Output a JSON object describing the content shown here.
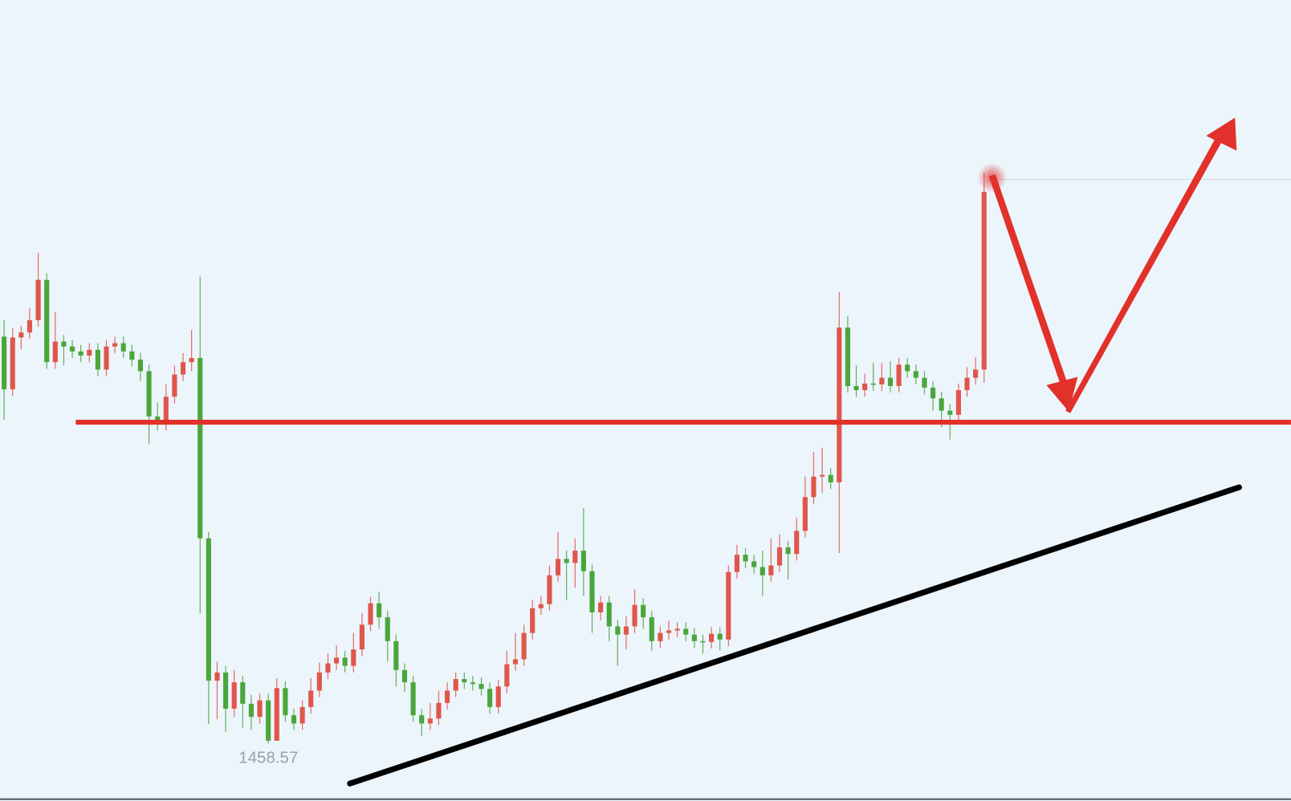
{
  "chart_data": {
    "type": "candlestick",
    "up_color": "#e0564c",
    "down_color": "#4aa63c",
    "ylim": [
      1450,
      1550
    ],
    "open": [
      1508.0,
      1501.6,
      1507.9,
      1508.5,
      1510.0,
      1514.9,
      1504.9,
      1507.4,
      1506.8,
      1506.2,
      1505.7,
      1506.4,
      1504.0,
      1506.8,
      1507.2,
      1506.2,
      1505.2,
      1503.8,
      1498.3,
      1497.4,
      1500.7,
      1503.4,
      1504.9,
      1505.4,
      1483.5,
      1466.2,
      1467.2,
      1462.8,
      1466.0,
      1463.4,
      1461.8,
      1463.8,
      1458.9,
      1465.3,
      1462.0,
      1461.0,
      1463.0,
      1465.0,
      1467.2,
      1468.3,
      1469.0,
      1468.0,
      1470.0,
      1473.0,
      1475.6,
      1473.9,
      1471.0,
      1467.5,
      1466.0,
      1462.0,
      1461.0,
      1461.6,
      1463.5,
      1465.0,
      1466.4,
      1466.0,
      1465.8,
      1465.2,
      1463.0,
      1465.5,
      1468.2,
      1468.8,
      1472.0,
      1475.0,
      1475.5,
      1479.0,
      1481.0,
      1480.5,
      1482.0,
      1479.5,
      1474.5,
      1475.7,
      1472.8,
      1471.8,
      1472.8,
      1475.4,
      1473.9,
      1471.0,
      1472.0,
      1472.3,
      1472.5,
      1471.8,
      1471.0,
      1470.9,
      1471.9,
      1471.2,
      1479.4,
      1481.5,
      1480.7,
      1480.0,
      1479.0,
      1480.2,
      1482.4,
      1481.6,
      1484.4,
      1488.5,
      1491.0,
      1491.2,
      1490.3,
      1509.1,
      1502.0,
      1501.5,
      1502.3,
      1502.2,
      1503.0,
      1502.0,
      1504.6,
      1503.8,
      1503.0,
      1501.8,
      1500.5,
      1499.0,
      1498.5,
      1501.5,
      1503.0,
      1504.0
    ],
    "high": [
      1510.0,
      1509.0,
      1509.3,
      1511.5,
      1518.2,
      1515.7,
      1511.0,
      1508.2,
      1507.6,
      1507.0,
      1507.2,
      1507.2,
      1507.6,
      1508.0,
      1508.0,
      1507.0,
      1506.0,
      1504.6,
      1500.0,
      1502.2,
      1504.5,
      1506.0,
      1508.8,
      1515.3,
      1484.3,
      1468.5,
      1468.0,
      1467.5,
      1466.8,
      1464.5,
      1464.6,
      1464.6,
      1466.5,
      1466.1,
      1462.8,
      1463.8,
      1466.5,
      1468.4,
      1469.5,
      1470.5,
      1469.8,
      1472.0,
      1474.4,
      1476.4,
      1477.0,
      1474.7,
      1471.8,
      1468.3,
      1466.8,
      1462.8,
      1463.5,
      1465.0,
      1466.0,
      1467.2,
      1467.2,
      1466.8,
      1466.6,
      1466.0,
      1466.3,
      1469.8,
      1472.0,
      1473.0,
      1476.0,
      1476.5,
      1480.2,
      1484.3,
      1482.0,
      1483.5,
      1487.2,
      1480.3,
      1476.5,
      1476.5,
      1473.6,
      1474.0,
      1477.3,
      1476.2,
      1474.7,
      1472.8,
      1473.5,
      1473.3,
      1473.3,
      1472.6,
      1471.8,
      1472.7,
      1472.7,
      1480.2,
      1482.7,
      1482.3,
      1481.5,
      1482.0,
      1483.5,
      1484.0,
      1483.2,
      1486.0,
      1491.0,
      1494.0,
      1494.5,
      1492.0,
      1513.4,
      1510.5,
      1504.5,
      1503.5,
      1504.8,
      1504.8,
      1505.0,
      1505.4,
      1505.4,
      1504.6,
      1503.8,
      1502.6,
      1501.3,
      1499.8,
      1502.3,
      1504.3,
      1505.5,
      1527.9
    ],
    "low": [
      1497.9,
      1500.8,
      1506.5,
      1507.7,
      1509.2,
      1504.1,
      1504.1,
      1504.5,
      1505.4,
      1504.9,
      1504.9,
      1503.2,
      1503.2,
      1506.0,
      1505.4,
      1504.4,
      1502.6,
      1494.9,
      1496.6,
      1496.6,
      1499.9,
      1502.6,
      1503.8,
      1474.4,
      1460.9,
      1461.5,
      1460.0,
      1461.8,
      1460.5,
      1460.2,
      1461.0,
      1458.57,
      1459.5,
      1461.2,
      1460.2,
      1460.2,
      1462.2,
      1464.2,
      1466.4,
      1467.5,
      1467.2,
      1467.2,
      1469.2,
      1472.2,
      1472.5,
      1468.5,
      1465.5,
      1464.8,
      1461.2,
      1459.5,
      1460.2,
      1460.8,
      1462.7,
      1464.2,
      1465.2,
      1465.0,
      1464.4,
      1462.2,
      1462.2,
      1464.7,
      1467.4,
      1468.0,
      1471.2,
      1474.2,
      1474.7,
      1478.2,
      1476.0,
      1477.5,
      1476.5,
      1472.0,
      1473.5,
      1471.0,
      1468.0,
      1470.0,
      1472.0,
      1472.5,
      1469.8,
      1470.2,
      1471.2,
      1471.5,
      1471.0,
      1470.2,
      1469.5,
      1470.1,
      1469.9,
      1470.4,
      1478.6,
      1479.9,
      1479.2,
      1476.5,
      1478.2,
      1479.4,
      1478.5,
      1480.8,
      1483.6,
      1487.7,
      1489.0,
      1489.5,
      1481.7,
      1501.2,
      1500.7,
      1500.7,
      1501.4,
      1501.4,
      1501.2,
      1501.2,
      1503.0,
      1502.2,
      1501.0,
      1499.0,
      1497.0,
      1495.5,
      1497.7,
      1500.7,
      1502.2,
      1502.4
    ],
    "close": [
      1501.6,
      1507.9,
      1508.5,
      1510.0,
      1514.9,
      1504.9,
      1507.4,
      1506.8,
      1506.2,
      1505.7,
      1506.4,
      1504.0,
      1506.8,
      1507.2,
      1506.2,
      1505.2,
      1503.8,
      1498.3,
      1497.4,
      1500.7,
      1503.4,
      1504.9,
      1505.4,
      1483.5,
      1466.2,
      1467.2,
      1462.8,
      1466.0,
      1463.4,
      1461.8,
      1463.8,
      1458.9,
      1465.3,
      1462.0,
      1461.0,
      1463.0,
      1465.0,
      1467.2,
      1468.3,
      1469.0,
      1468.0,
      1470.0,
      1473.0,
      1475.6,
      1473.9,
      1471.0,
      1467.5,
      1466.0,
      1462.0,
      1461.0,
      1461.6,
      1463.5,
      1465.0,
      1466.4,
      1466.0,
      1465.8,
      1465.2,
      1463.0,
      1465.5,
      1468.2,
      1468.8,
      1472.0,
      1475.0,
      1475.5,
      1479.0,
      1481.0,
      1480.5,
      1482.0,
      1479.5,
      1474.5,
      1475.7,
      1472.8,
      1471.8,
      1472.8,
      1475.4,
      1473.9,
      1471.0,
      1472.0,
      1472.3,
      1472.5,
      1471.8,
      1471.0,
      1470.9,
      1471.9,
      1471.2,
      1479.4,
      1481.5,
      1480.7,
      1480.0,
      1479.0,
      1480.2,
      1482.4,
      1481.6,
      1484.4,
      1488.5,
      1491.0,
      1491.2,
      1490.3,
      1509.1,
      1502.0,
      1501.5,
      1502.3,
      1502.2,
      1503.0,
      1502.0,
      1504.6,
      1503.8,
      1503.0,
      1501.8,
      1500.5,
      1499.0,
      1498.5,
      1501.5,
      1503.0,
      1504.0,
      1525.6
    ]
  }
}
